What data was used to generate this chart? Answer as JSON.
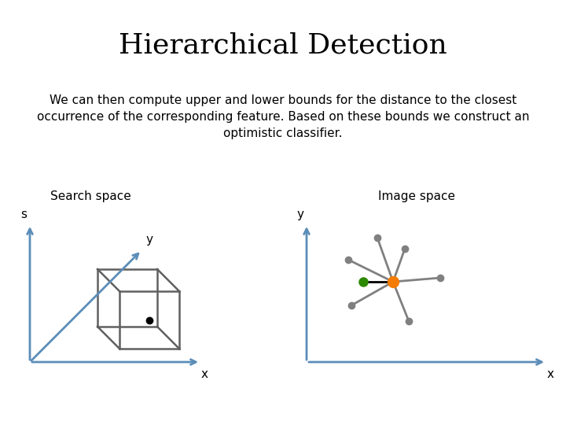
{
  "title": "Hierarchical Detection",
  "subtitle": "We can then compute upper and lower bounds for the distance to the closest\noccurrence of the corresponding feature. Based on these bounds we construct an\noptimistic classifier.",
  "title_fontsize": 26,
  "subtitle_fontsize": 11,
  "bg_color": "#ffffff",
  "text_color": "#000000",
  "axis_color": "#5b8db8",
  "search_space_label": "Search space",
  "image_space_label": "Image space",
  "cube_color": "#606060",
  "cube_dot_color": "#000000",
  "orange_dot_color": "#f57c00",
  "green_dot_color": "#2d8a00",
  "gray_spoke_color": "#808080"
}
